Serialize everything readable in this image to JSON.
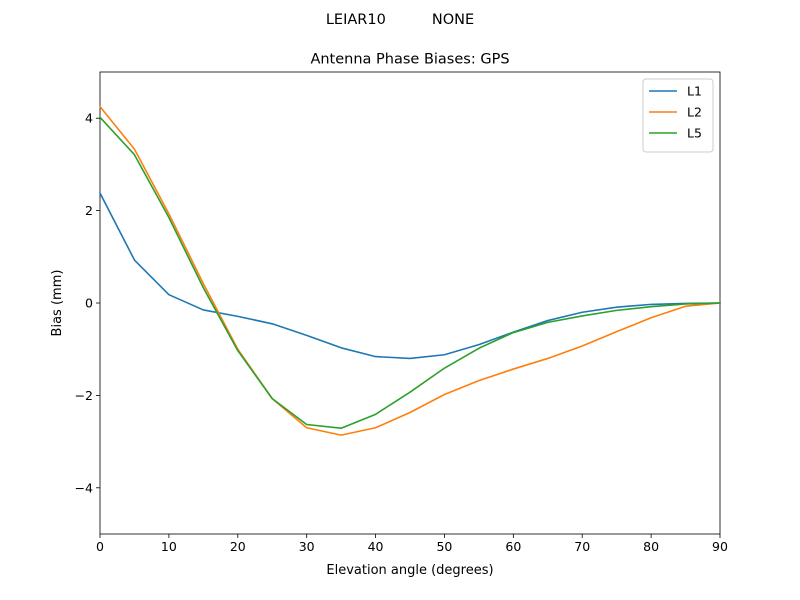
{
  "suptitle": "LEIAR10          NONE",
  "chart_data": {
    "type": "line",
    "title": "Antenna Phase Biases: GPS",
    "xlabel": "Elevation angle (degrees)",
    "ylabel": "Bias (mm)",
    "xlim": [
      0,
      90
    ],
    "ylim": [
      -5,
      5
    ],
    "xticks": [
      "0",
      "10",
      "20",
      "30",
      "40",
      "50",
      "60",
      "70",
      "80",
      "90"
    ],
    "xtick_values": [
      0,
      10,
      20,
      30,
      40,
      50,
      60,
      70,
      80,
      90
    ],
    "yticks": [
      "−4",
      "−2",
      "0",
      "2",
      "4"
    ],
    "ytick_values": [
      -4,
      -2,
      0,
      2,
      4
    ],
    "grid": false,
    "legend_position": "top-right",
    "x": [
      0,
      5,
      10,
      15,
      20,
      25,
      30,
      35,
      40,
      45,
      50,
      55,
      60,
      65,
      70,
      75,
      80,
      85,
      90
    ],
    "series": [
      {
        "name": "L1",
        "color": "#1f77b4",
        "values": [
          2.38,
          0.93,
          0.18,
          -0.15,
          -0.29,
          -0.45,
          -0.7,
          -0.97,
          -1.16,
          -1.2,
          -1.12,
          -0.9,
          -0.63,
          -0.38,
          -0.2,
          -0.09,
          -0.03,
          -0.01,
          0.0
        ]
      },
      {
        "name": "L2",
        "color": "#ff7f0e",
        "values": [
          4.25,
          3.33,
          1.93,
          0.42,
          -1.0,
          -2.07,
          -2.7,
          -2.86,
          -2.7,
          -2.37,
          -1.98,
          -1.68,
          -1.43,
          -1.2,
          -0.93,
          -0.62,
          -0.32,
          -0.07,
          0.0
        ]
      },
      {
        "name": "L5",
        "color": "#2ca02c",
        "values": [
          4.02,
          3.21,
          1.85,
          0.33,
          -1.03,
          -2.07,
          -2.63,
          -2.71,
          -2.41,
          -1.93,
          -1.41,
          -0.98,
          -0.64,
          -0.42,
          -0.28,
          -0.16,
          -0.08,
          -0.02,
          0.0
        ]
      }
    ]
  }
}
